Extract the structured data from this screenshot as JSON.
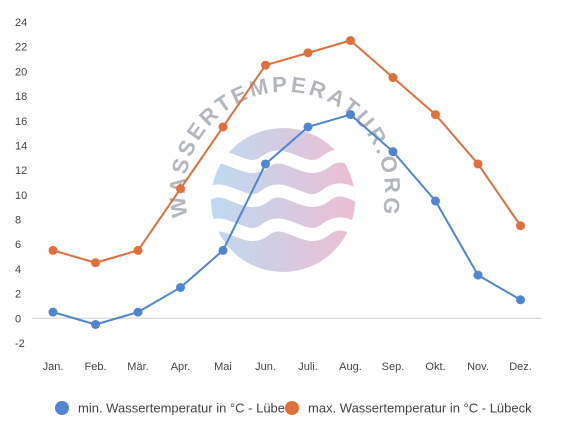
{
  "chart_data": {
    "type": "line",
    "categories": [
      "Jan.",
      "Feb.",
      "Mär.",
      "Apr.",
      "Mai",
      "Jun.",
      "Juli.",
      "Aug.",
      "Sep.",
      "Okt.",
      "Nov.",
      "Dez."
    ],
    "series": [
      {
        "name": "min. Wassertemperatur in °C - Lübeck",
        "color": "#4e86d2",
        "values": [
          0.5,
          -0.5,
          0.5,
          2.5,
          5.5,
          12.5,
          15.5,
          16.5,
          13.5,
          9.5,
          3.5,
          1.5
        ]
      },
      {
        "name": "max. Wassertemperatur in °C - Lübeck",
        "color": "#e16f3b",
        "values": [
          5.5,
          4.5,
          5.5,
          10.5,
          15.5,
          20.5,
          21.5,
          22.5,
          19.5,
          16.5,
          12.5,
          7.5
        ]
      }
    ],
    "ylim": [
      -2,
      24
    ],
    "yticks": [
      -2,
      0,
      2,
      4,
      6,
      8,
      10,
      12,
      14,
      16,
      18,
      20,
      22,
      24
    ],
    "grid": false,
    "legend_position": "bottom"
  },
  "watermark": {
    "text": "WASSERTEMPERATUR.ORG",
    "colors": [
      "#a9cdeb",
      "#e6a9c2"
    ]
  }
}
